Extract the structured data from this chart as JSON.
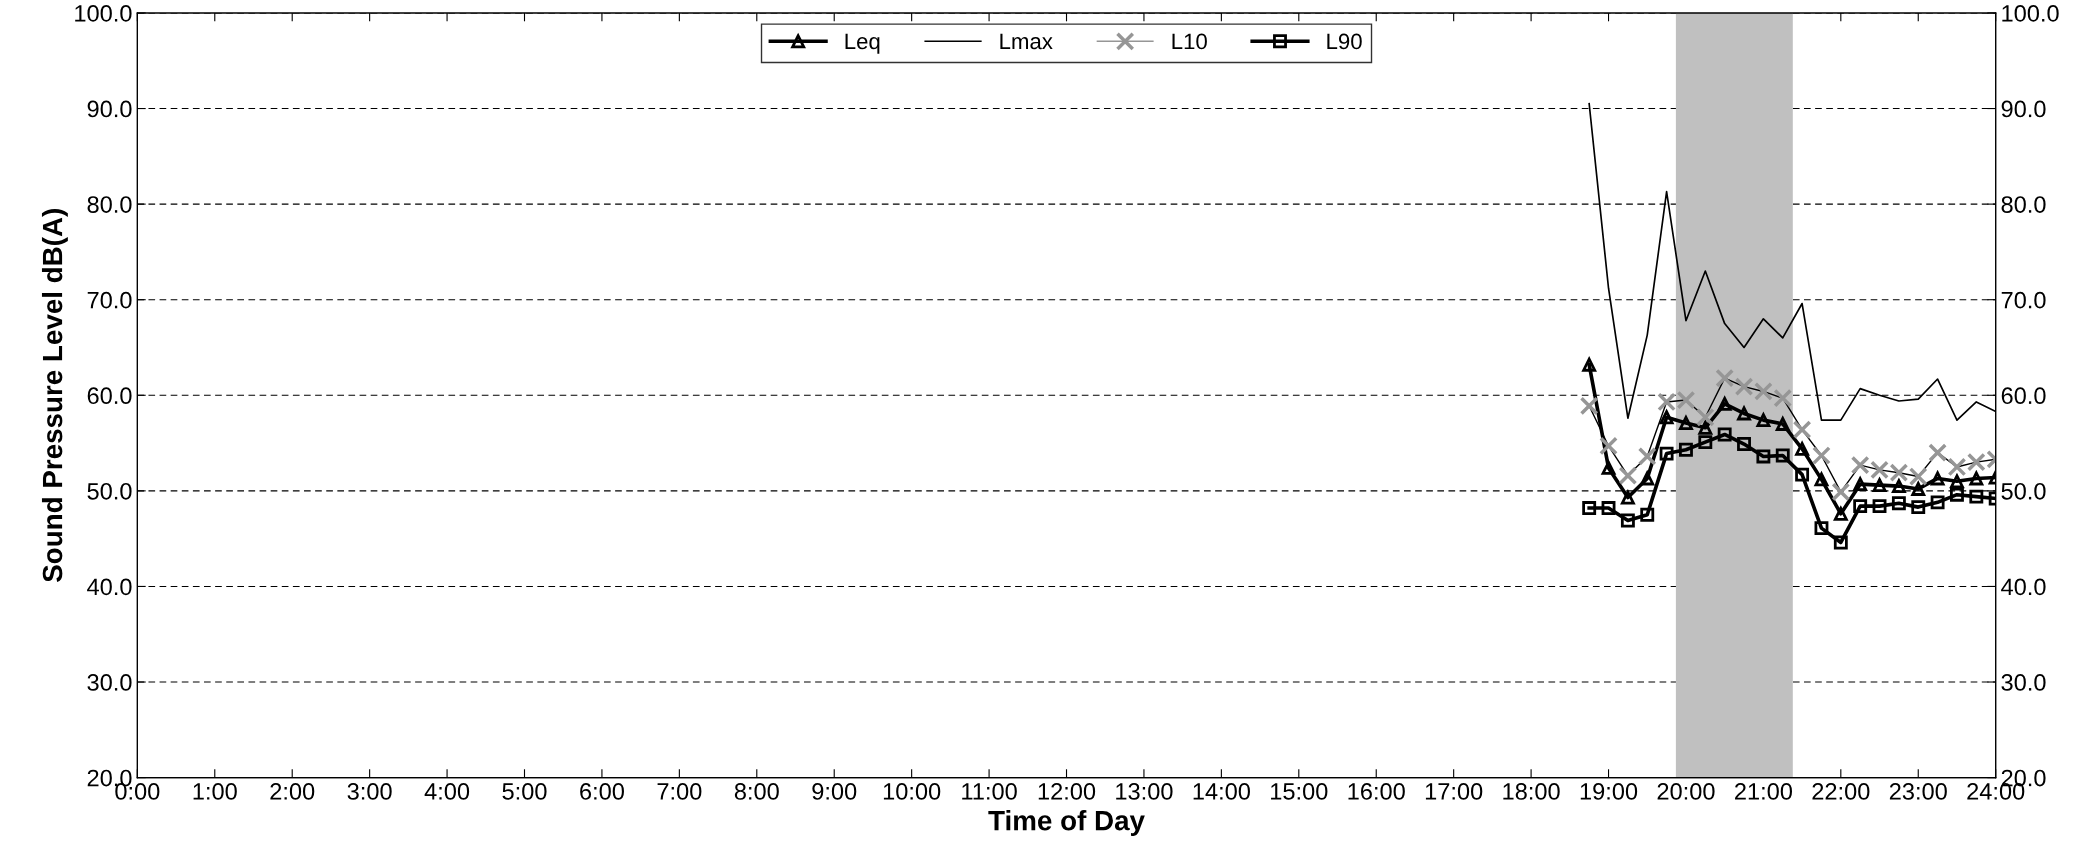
{
  "chart_data": {
    "type": "line",
    "xlabel": "Time of Day",
    "ylabel": "Sound Pressure Level dB(A)",
    "x": [
      18.75,
      19.0,
      19.25,
      19.5,
      19.75,
      20.0,
      20.25,
      20.5,
      20.75,
      21.0,
      21.25,
      21.5,
      21.75,
      22.0,
      22.25,
      22.5,
      22.75,
      23.0,
      23.25,
      23.5,
      23.75,
      24.0
    ],
    "series": [
      {
        "name": "Leq",
        "color": "#000000",
        "marker": "triangle",
        "values": [
          63.2,
          52.4,
          49.3,
          51.3,
          57.7,
          57.1,
          56.6,
          59.1,
          58.1,
          57.4,
          57.0,
          54.4,
          51.2,
          47.6,
          50.7,
          50.6,
          50.5,
          50.2,
          51.3,
          51.0,
          51.3,
          51.4
        ]
      },
      {
        "name": "Lmax",
        "color": "#000000",
        "marker": "none",
        "values": [
          90.5,
          71.2,
          57.6,
          66.3,
          81.3,
          67.8,
          73.0,
          67.5,
          65.0,
          68.0,
          66.0,
          69.6,
          57.4,
          57.4,
          60.7,
          60.0,
          59.4,
          59.6,
          61.7,
          57.4,
          59.3,
          58.3
        ]
      },
      {
        "name": "L10",
        "color": "#969696",
        "marker": "cross",
        "values": [
          58.9,
          54.7,
          51.6,
          53.6,
          59.3,
          59.5,
          57.7,
          61.8,
          60.9,
          60.4,
          59.7,
          56.4,
          53.7,
          49.9,
          52.7,
          52.2,
          51.9,
          51.5,
          54.0,
          52.5,
          53.0,
          53.3
        ]
      },
      {
        "name": "L90",
        "color": "#000000",
        "marker": "square",
        "values": [
          48.2,
          48.2,
          46.9,
          47.5,
          53.9,
          54.3,
          55.1,
          55.9,
          54.9,
          53.6,
          53.7,
          51.7,
          46.1,
          44.6,
          48.4,
          48.4,
          48.7,
          48.3,
          48.8,
          49.6,
          49.4,
          49.2
        ]
      }
    ],
    "bands": [
      {
        "axis": "x",
        "from": 19.87,
        "to": 21.38,
        "color": "#c0c0c0"
      }
    ],
    "xlim": [
      0,
      24
    ],
    "xticks": [
      {
        "value": 0,
        "label": "0:00"
      },
      {
        "value": 1,
        "label": "1:00"
      },
      {
        "value": 2,
        "label": "2:00"
      },
      {
        "value": 3,
        "label": "3:00"
      },
      {
        "value": 4,
        "label": "4:00"
      },
      {
        "value": 5,
        "label": "5:00"
      },
      {
        "value": 6,
        "label": "6:00"
      },
      {
        "value": 7,
        "label": "7:00"
      },
      {
        "value": 8,
        "label": "8:00"
      },
      {
        "value": 9,
        "label": "9:00"
      },
      {
        "value": 10,
        "label": "10:00"
      },
      {
        "value": 11,
        "label": "11:00"
      },
      {
        "value": 12,
        "label": "12:00"
      },
      {
        "value": 13,
        "label": "13:00"
      },
      {
        "value": 14,
        "label": "14:00"
      },
      {
        "value": 15,
        "label": "15:00"
      },
      {
        "value": 16,
        "label": "16:00"
      },
      {
        "value": 17,
        "label": "17:00"
      },
      {
        "value": 18,
        "label": "18:00"
      },
      {
        "value": 19,
        "label": "19:00"
      },
      {
        "value": 20,
        "label": "20:00"
      },
      {
        "value": 21,
        "label": "21:00"
      },
      {
        "value": 22,
        "label": "22:00"
      },
      {
        "value": 23,
        "label": "23:00"
      },
      {
        "value": 24,
        "label": "24:00"
      }
    ],
    "ylim": [
      20,
      100
    ],
    "yticks": [
      {
        "value": 20,
        "label": "20.0"
      },
      {
        "value": 30,
        "label": "30.0"
      },
      {
        "value": 40,
        "label": "40.0"
      },
      {
        "value": 50,
        "label": "50.0"
      },
      {
        "value": 60,
        "label": "60.0"
      },
      {
        "value": 70,
        "label": "70.0"
      },
      {
        "value": 80,
        "label": "80.0"
      },
      {
        "value": 90,
        "label": "90.0"
      },
      {
        "value": 100,
        "label": "100.0"
      }
    ],
    "y2lim": [
      20,
      100
    ],
    "y2ticks": [
      {
        "value": 20,
        "label": "20.0"
      },
      {
        "value": 30,
        "label": "30.0"
      },
      {
        "value": 40,
        "label": "40.0"
      },
      {
        "value": 50,
        "label": "50.0"
      },
      {
        "value": 60,
        "label": "60.0"
      },
      {
        "value": 70,
        "label": "70.0"
      },
      {
        "value": 80,
        "label": "80.0"
      },
      {
        "value": 90,
        "label": "90.0"
      },
      {
        "value": 100,
        "label": "100.0"
      }
    ],
    "grid": "y",
    "legend": "top"
  }
}
